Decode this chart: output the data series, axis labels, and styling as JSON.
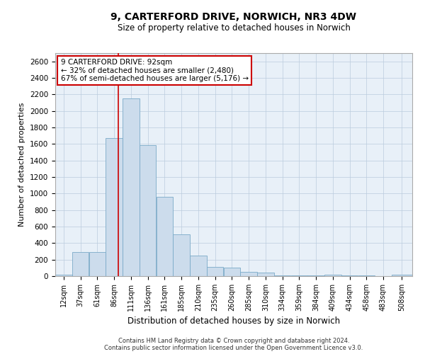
{
  "title_line1": "9, CARTERFORD DRIVE, NORWICH, NR3 4DW",
  "title_line2": "Size of property relative to detached houses in Norwich",
  "xlabel": "Distribution of detached houses by size in Norwich",
  "ylabel": "Number of detached properties",
  "bar_color": "#ccdcec",
  "bar_edge_color": "#7aaac8",
  "bar_edge_width": 0.6,
  "background_color": "#ffffff",
  "axes_facecolor": "#e8f0f8",
  "grid_color": "#bbccdd",
  "annotation_line_color": "#cc0000",
  "annotation_box_edgecolor": "#cc0000",
  "annotation_text_line1": "9 CARTERFORD DRIVE: 92sqm",
  "annotation_text_line2": "← 32% of detached houses are smaller (2,480)",
  "annotation_text_line3": "67% of semi-detached houses are larger (5,176) →",
  "property_size_sqm": 92,
  "categories": [
    "12sqm",
    "37sqm",
    "61sqm",
    "86sqm",
    "111sqm",
    "136sqm",
    "161sqm",
    "185sqm",
    "210sqm",
    "235sqm",
    "260sqm",
    "285sqm",
    "310sqm",
    "334sqm",
    "359sqm",
    "384sqm",
    "409sqm",
    "434sqm",
    "458sqm",
    "483sqm",
    "508sqm"
  ],
  "bin_left": [
    0,
    24.5,
    49,
    73.5,
    98,
    122.5,
    147,
    171.5,
    196,
    220.5,
    245,
    269.5,
    294,
    318.5,
    343,
    367.5,
    392,
    416.5,
    441,
    465.5,
    490
  ],
  "bin_right": [
    24.5,
    49,
    73.5,
    98,
    122.5,
    147,
    171.5,
    196,
    220.5,
    245,
    269.5,
    294,
    318.5,
    343,
    367.5,
    392,
    416.5,
    441,
    465.5,
    490,
    520
  ],
  "values": [
    20,
    295,
    295,
    1670,
    2150,
    1590,
    960,
    505,
    245,
    115,
    100,
    50,
    40,
    10,
    10,
    5,
    20,
    5,
    5,
    0,
    20
  ],
  "ylim": [
    0,
    2700
  ],
  "xlim": [
    0,
    520
  ],
  "yticks": [
    0,
    200,
    400,
    600,
    800,
    1000,
    1200,
    1400,
    1600,
    1800,
    2000,
    2200,
    2400,
    2600
  ],
  "footnote_line1": "Contains HM Land Registry data © Crown copyright and database right 2024.",
  "footnote_line2": "Contains public sector information licensed under the Open Government Licence v3.0."
}
